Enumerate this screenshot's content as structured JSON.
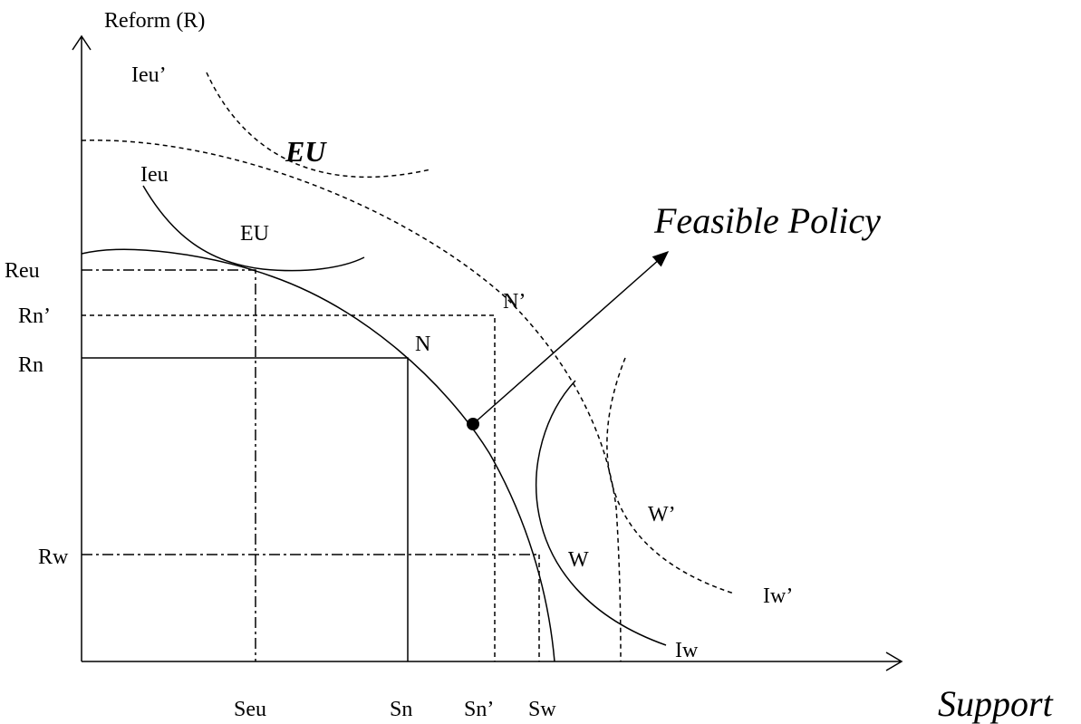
{
  "axes": {
    "y_label": "Reform (R)",
    "x_label": "Support"
  },
  "curve_labels": {
    "ieu_prime": "Ieu’",
    "eu_prime": "EU",
    "ieu": "Ieu",
    "eu": "EU",
    "n_prime": "N’",
    "n": "N",
    "w_prime": "W’",
    "w": "W",
    "iw_prime": "Iw’",
    "iw": "Iw"
  },
  "arrow_label": "Feasible Policy",
  "y_levels": [
    "Reu",
    "Rn’",
    "Rn",
    "Rw"
  ],
  "x_levels": [
    "Seu",
    "Sn",
    "Sn’",
    "Sw"
  ]
}
